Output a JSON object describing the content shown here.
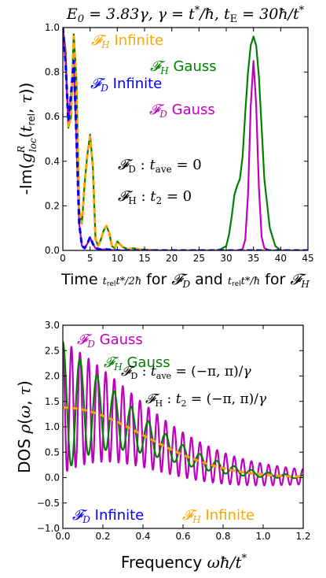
{
  "chart_data": [
    {
      "type": "line",
      "title": "E₀ = 3.83γ, γ = t*/ħ, t_E = 30ħ/t*",
      "ylabel": "-Im(g^R_loc(t_rel, τ))",
      "xlabel": "Time t_rel t*/2ħ for F_D and t_rel t*/ħ for F_H",
      "xlim": [
        0,
        45
      ],
      "ylim": [
        0,
        1.0
      ],
      "xticks": [
        "0",
        "5",
        "10",
        "15",
        "20",
        "25",
        "30",
        "35",
        "40",
        "45"
      ],
      "yticks": [
        "0.0",
        "0.2",
        "0.4",
        "0.6",
        "0.8",
        "1.0"
      ],
      "legend_labels": [
        "𝓕H Infinite",
        "𝓕H Gauss",
        "𝓕D Infinite",
        "𝓕D Gauss"
      ],
      "annotations": [
        "𝓕D : t_ave = 0",
        "𝓕H : t₂ = 0"
      ],
      "series": [
        {
          "name": "𝓕H Infinite",
          "color": "#ffa500",
          "style": "dashed",
          "x": [
            0,
            0.5,
            1,
            1.5,
            2,
            2.5,
            3,
            3.5,
            4,
            4.5,
            5,
            5.5,
            6,
            6.5,
            7,
            7.5,
            8,
            8.5,
            9,
            9.5,
            10,
            11,
            12,
            13,
            14,
            16,
            18,
            45
          ],
          "y": [
            1.0,
            0.9,
            0.55,
            0.6,
            0.96,
            0.75,
            0.18,
            0.12,
            0.3,
            0.43,
            0.51,
            0.38,
            0.05,
            0.02,
            0.05,
            0.09,
            0.11,
            0.08,
            0.02,
            0.01,
            0.04,
            0.015,
            0.005,
            0.01,
            0.005,
            0.002,
            0,
            0
          ]
        },
        {
          "name": "𝓕H Gauss",
          "color": "#008000",
          "style": "solid",
          "x": [
            0,
            0.5,
            1,
            1.5,
            2,
            2.5,
            3,
            3.5,
            4,
            4.5,
            5,
            5.5,
            6,
            6.5,
            7,
            7.5,
            8,
            8.5,
            9,
            9.5,
            10,
            11,
            12,
            13,
            14,
            16,
            18,
            28,
            29,
            30,
            30.5,
            31,
            31.5,
            32,
            32.5,
            33,
            33.5,
            34,
            34.5,
            35,
            35.5,
            36,
            36.5,
            37,
            38,
            39,
            40,
            45
          ],
          "y": [
            1.0,
            0.9,
            0.55,
            0.6,
            0.97,
            0.76,
            0.18,
            0.12,
            0.3,
            0.43,
            0.52,
            0.38,
            0.05,
            0.02,
            0.05,
            0.09,
            0.11,
            0.08,
            0.02,
            0.01,
            0.04,
            0.015,
            0.005,
            0.01,
            0.005,
            0.002,
            0,
            0,
            0.005,
            0.02,
            0.07,
            0.15,
            0.25,
            0.29,
            0.32,
            0.42,
            0.62,
            0.8,
            0.92,
            0.96,
            0.92,
            0.78,
            0.55,
            0.32,
            0.1,
            0.02,
            0,
            0
          ]
        },
        {
          "name": "𝓕D Infinite",
          "color": "#0000ff",
          "style": "dashed",
          "x": [
            0,
            0.5,
            1,
            1.5,
            2,
            2.5,
            3,
            3.5,
            4,
            4.5,
            5,
            5.5,
            6,
            7,
            8,
            9,
            10,
            45
          ],
          "y": [
            1.0,
            0.84,
            0.58,
            0.7,
            0.85,
            0.5,
            0.12,
            0.02,
            0.01,
            0.03,
            0.06,
            0.03,
            0.01,
            0.004,
            0.005,
            0.002,
            0,
            0
          ]
        },
        {
          "name": "𝓕D Gauss",
          "color": "#bf00bf",
          "style": "solid",
          "x": [
            0,
            0.5,
            1,
            1.5,
            2,
            2.5,
            3,
            3.5,
            4,
            4.5,
            5,
            5.5,
            6,
            7,
            8,
            9,
            10,
            32,
            33,
            33.5,
            34,
            34.5,
            35,
            35.5,
            36,
            36.5,
            37,
            38,
            45
          ],
          "y": [
            1.0,
            0.84,
            0.58,
            0.7,
            0.85,
            0.5,
            0.12,
            0.02,
            0.01,
            0.03,
            0.06,
            0.03,
            0.01,
            0.004,
            0.005,
            0.002,
            0,
            0,
            0.005,
            0.05,
            0.25,
            0.65,
            0.85,
            0.65,
            0.28,
            0.06,
            0.01,
            0,
            0
          ]
        }
      ]
    },
    {
      "type": "line",
      "ylabel": "DOS ρ(ω, τ)",
      "xlabel": "Frequency ωħ/t*",
      "xlim": [
        0,
        1.2
      ],
      "ylim": [
        -1.0,
        3.0
      ],
      "xticks": [
        "0.0",
        "0.2",
        "0.4",
        "0.6",
        "0.8",
        "1.0",
        "1.2"
      ],
      "yticks": [
        "−1.0",
        "−0.5",
        "0.0",
        "0.5",
        "1.0",
        "1.5",
        "2.0",
        "2.5",
        "3.0"
      ],
      "legend_labels": [
        "𝓕D Gauss",
        "𝓕H Gauss",
        "𝓕D Infinite",
        "𝓕H Infinite"
      ],
      "annotations": [
        "𝓕D : t_ave = (−π, π)/γ",
        "𝓕H : t₂ = (−π, π)/γ"
      ],
      "series": [
        {
          "name": "𝓕D Gauss",
          "color": "#bf00bf",
          "style": "solid",
          "model": {
            "kind": "gauss_osc",
            "period": 0.0428,
            "env_amp": 1.38,
            "env_width": 0.4,
            "osc_amp0": 1.3,
            "osc_decay": 1.8
          }
        },
        {
          "name": "𝓕H Gauss",
          "color": "#008000",
          "style": "solid",
          "model": {
            "kind": "gauss_osc",
            "period": 0.0855,
            "env_amp": 1.38,
            "env_width": 0.4,
            "osc_amp0": 1.3,
            "osc_decay": 3.2
          }
        },
        {
          "name": "𝓕D Infinite",
          "color": "#0000ff",
          "style": "dashed",
          "model": {
            "kind": "gauss",
            "amp": 1.38,
            "width": 0.4
          }
        },
        {
          "name": "𝓕H Infinite",
          "color": "#ffa500",
          "style": "dashed",
          "model": {
            "kind": "gauss",
            "amp": 1.38,
            "width": 0.4
          }
        }
      ]
    }
  ]
}
